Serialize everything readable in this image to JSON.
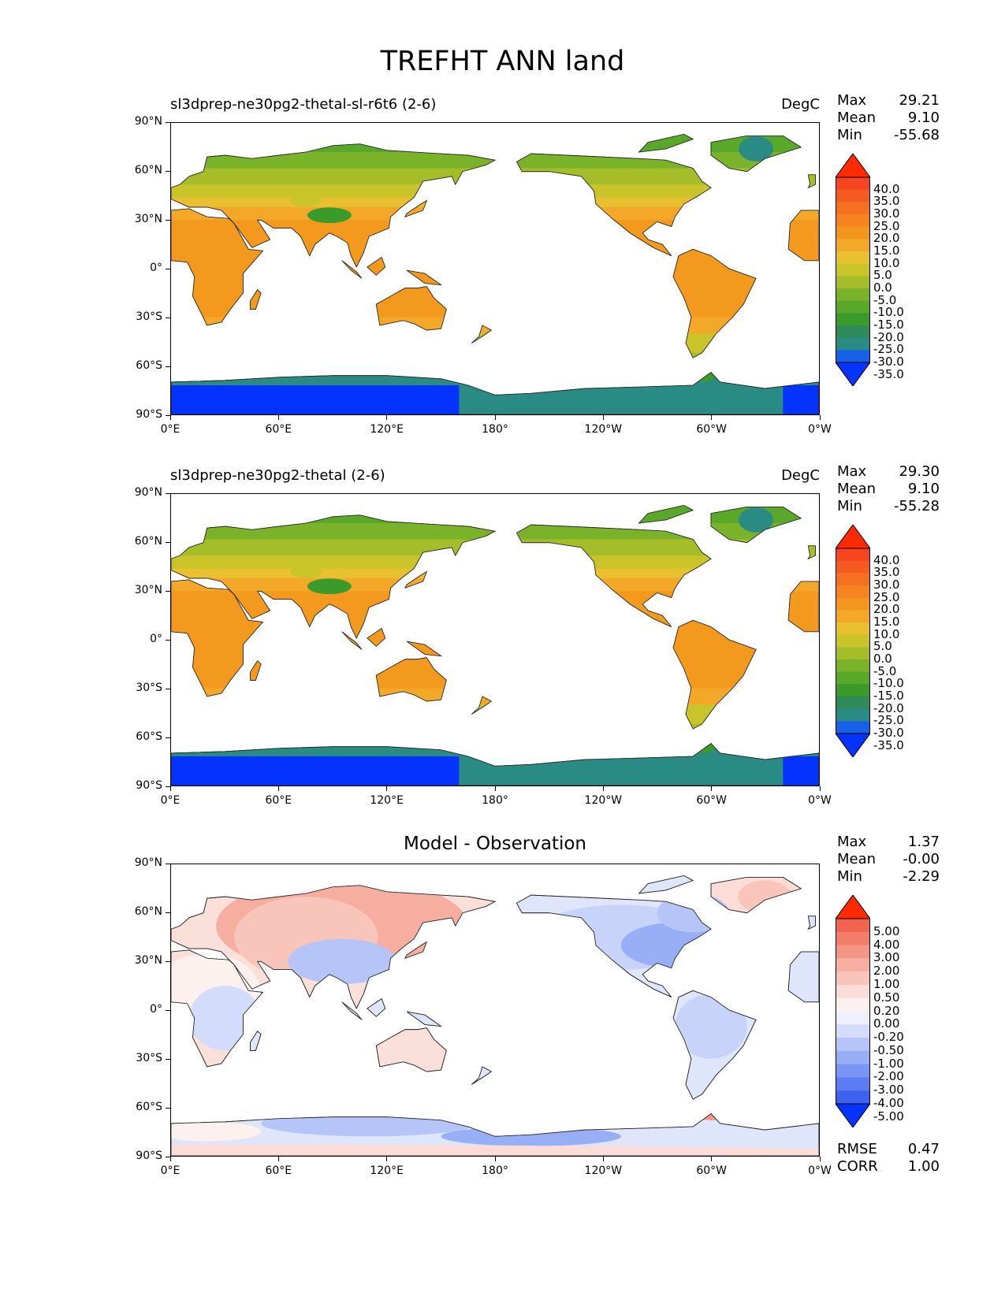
{
  "figure": {
    "title": "TREFHT ANN land"
  },
  "axes": {
    "lat_labels": [
      "90°N",
      "60°N",
      "30°N",
      "0°",
      "30°S",
      "60°S",
      "90°S"
    ],
    "lon_labels": [
      "0°E",
      "60°E",
      "120°E",
      "180°",
      "120°W",
      "60°W",
      "0°W"
    ]
  },
  "panels": [
    {
      "title_left": "sl3dprep-ne30pg2-thetal-sl-r6t6 (2-6)",
      "title_right": "DegC",
      "stats": {
        "max_label": "Max",
        "max": "29.21",
        "mean_label": "Mean",
        "mean": "9.10",
        "min_label": "Min",
        "min": "-55.68"
      },
      "colorbar": {
        "labels": [
          "40.0",
          "35.0",
          "30.0",
          "25.0",
          "20.0",
          "15.0",
          "10.0",
          "5.0",
          "0.0",
          "-5.0",
          "-10.0",
          "-15.0",
          "-20.0",
          "-25.0",
          "-30.0",
          "-35.0"
        ],
        "colors": [
          "#0433ff",
          "#1761e8",
          "#2a8a84",
          "#2f8a5a",
          "#3a9a2a",
          "#5aa82a",
          "#7ab22a",
          "#a6bd2a",
          "#c8c42a",
          "#e8c030",
          "#f3a829",
          "#f2961e",
          "#f58420",
          "#f57020",
          "#f55a20",
          "#f54420",
          "#ff2a00"
        ]
      }
    },
    {
      "title_left": "sl3dprep-ne30pg2-thetal (2-6)",
      "title_right": "DegC",
      "stats": {
        "max_label": "Max",
        "max": "29.30",
        "mean_label": "Mean",
        "mean": "9.10",
        "min_label": "Min",
        "min": "-55.28"
      },
      "colorbar": {
        "labels": [
          "40.0",
          "35.0",
          "30.0",
          "25.0",
          "20.0",
          "15.0",
          "10.0",
          "5.0",
          "0.0",
          "-5.0",
          "-10.0",
          "-15.0",
          "-20.0",
          "-25.0",
          "-30.0",
          "-35.0"
        ],
        "colors": [
          "#0433ff",
          "#1761e8",
          "#2a8a84",
          "#2f8a5a",
          "#3a9a2a",
          "#5aa82a",
          "#7ab22a",
          "#a6bd2a",
          "#c8c42a",
          "#e8c030",
          "#f3a829",
          "#f2961e",
          "#f58420",
          "#f57020",
          "#f55a20",
          "#f54420",
          "#ff2a00"
        ]
      }
    },
    {
      "title_center": "Model - Observation",
      "stats": {
        "max_label": "Max",
        "max": "1.37",
        "mean_label": "Mean",
        "mean": "-0.00",
        "min_label": "Min",
        "min": "-2.29"
      },
      "colorbar": {
        "labels": [
          "5.00",
          "4.00",
          "3.00",
          "2.00",
          "1.00",
          "0.50",
          "0.20",
          "0.00",
          "-0.20",
          "-0.50",
          "-1.00",
          "-2.00",
          "-3.00",
          "-4.00",
          "-5.00"
        ],
        "colors": [
          "#0433ff",
          "#3d62f0",
          "#5b7cf2",
          "#7a96f4",
          "#98aef6",
          "#b5c5f8",
          "#d3dcfa",
          "#eef1fd",
          "#fdf1ef",
          "#fbdcd6",
          "#f9c5bb",
          "#f6aea0",
          "#f49685",
          "#f27d6b",
          "#f06450",
          "#ff2a00"
        ]
      },
      "metrics": {
        "rmse_label": "RMSE",
        "rmse": "0.47",
        "corr_label": "CORR",
        "corr": "1.00"
      }
    }
  ],
  "colors": {
    "land_warm": "#f39a1e",
    "land_mid": "#c8c42a",
    "land_cold": "#5aa82a",
    "ice": "#0433ff",
    "ice_edge": "#2a8a84",
    "diff_pos": "#f6aea0",
    "diff_neg": "#b5c5f8"
  }
}
